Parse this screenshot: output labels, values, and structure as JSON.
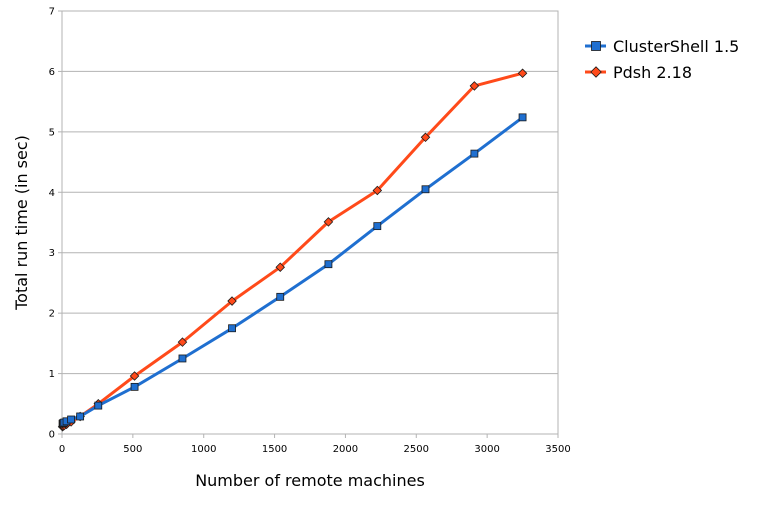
{
  "chart_data": {
    "type": "line",
    "title": "",
    "xlabel": "Number of remote machines",
    "ylabel": "Total run time (in sec)",
    "xlim": [
      0,
      3500
    ],
    "ylim": [
      0,
      7
    ],
    "xticks": [
      "0",
      "500",
      "1000",
      "1500",
      "2000",
      "2500",
      "3000",
      "3500"
    ],
    "yticks": [
      "0",
      "1",
      "2",
      "3",
      "4",
      "5",
      "6",
      "7"
    ],
    "grid": true,
    "legend_position": "right",
    "series": [
      {
        "name": "ClusterShell 1.5",
        "color": "#1f6fd0",
        "marker": "square",
        "x": [
          4,
          8,
          16,
          32,
          64,
          128,
          256,
          512,
          850,
          1200,
          1540,
          1880,
          2225,
          2565,
          2910,
          3250
        ],
        "y": [
          0.17,
          0.18,
          0.19,
          0.21,
          0.24,
          0.29,
          0.47,
          0.78,
          1.25,
          1.75,
          2.27,
          2.81,
          3.44,
          4.05,
          4.64,
          5.24
        ]
      },
      {
        "name": "Pdsh 2.18",
        "color": "#ff4a1a",
        "marker": "diamond",
        "x": [
          4,
          8,
          16,
          32,
          64,
          128,
          256,
          512,
          850,
          1200,
          1540,
          1880,
          2225,
          2565,
          2910,
          3250
        ],
        "y": [
          0.12,
          0.13,
          0.14,
          0.16,
          0.2,
          0.29,
          0.5,
          0.96,
          1.52,
          2.2,
          2.76,
          3.51,
          4.03,
          4.91,
          5.76,
          5.97
        ]
      }
    ]
  }
}
